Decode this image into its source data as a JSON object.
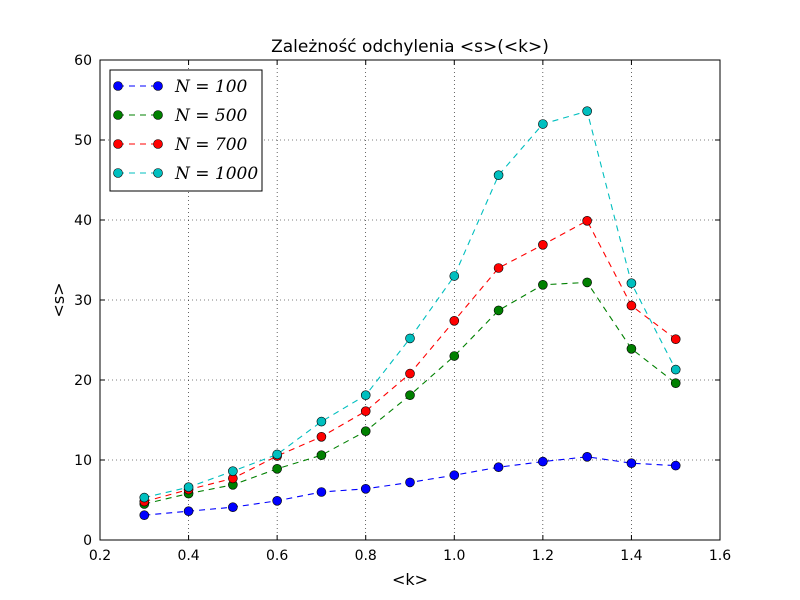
{
  "chart_data": {
    "type": "line",
    "title": "Zależność odchylenia <s>(<k>)",
    "xlabel": "<k>",
    "ylabel": "<s>",
    "xlim": [
      0.2,
      1.6
    ],
    "ylim": [
      0,
      60
    ],
    "xticks": [
      "0.2",
      "0.4",
      "0.6",
      "0.8",
      "1.0",
      "1.2",
      "1.4",
      "1.6"
    ],
    "yticks": [
      "0",
      "10",
      "20",
      "30",
      "40",
      "50",
      "60"
    ],
    "grid": true,
    "legend_position": "top-left",
    "x": [
      0.3,
      0.4,
      0.5,
      0.6,
      0.7,
      0.8,
      0.9,
      1.0,
      1.1,
      1.2,
      1.3,
      1.4,
      1.5
    ],
    "series": [
      {
        "name": "N = 100",
        "color": "#0000ff",
        "values": [
          3.1,
          3.6,
          4.1,
          4.9,
          6.0,
          6.4,
          7.2,
          8.1,
          9.1,
          9.8,
          10.4,
          9.6,
          9.3
        ]
      },
      {
        "name": "N = 500",
        "color": "#008000",
        "values": [
          4.5,
          5.8,
          6.9,
          8.9,
          10.6,
          13.6,
          18.1,
          23.0,
          28.7,
          31.9,
          32.2,
          23.9,
          19.6
        ]
      },
      {
        "name": "N = 700",
        "color": "#ff0000",
        "values": [
          4.8,
          6.3,
          7.7,
          10.5,
          12.9,
          16.1,
          20.8,
          27.4,
          34.0,
          36.9,
          39.9,
          29.3,
          25.1
        ]
      },
      {
        "name": "N = 1000",
        "color": "#00bfbf",
        "values": [
          5.3,
          6.6,
          8.6,
          10.7,
          14.8,
          18.1,
          25.2,
          33.0,
          45.6,
          52.0,
          53.6,
          32.1,
          21.3
        ]
      }
    ]
  }
}
